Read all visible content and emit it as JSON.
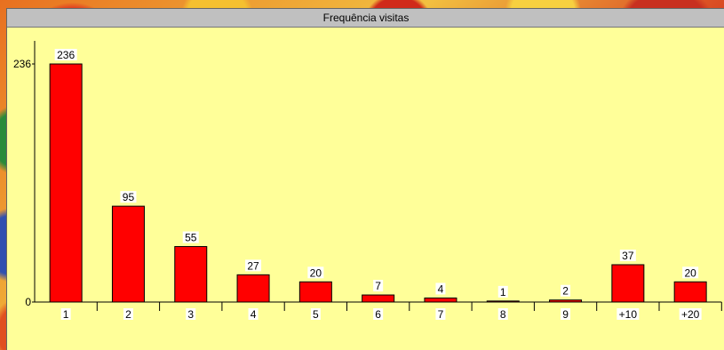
{
  "chart_data": {
    "type": "bar",
    "title": "Frequência visitas",
    "categories": [
      "1",
      "2",
      "3",
      "4",
      "5",
      "6",
      "7",
      "8",
      "9",
      "+10",
      "+20"
    ],
    "values": [
      236,
      95,
      55,
      27,
      20,
      7,
      4,
      1,
      2,
      37,
      20
    ],
    "y_ticks": [
      "0",
      "236"
    ],
    "ylim": [
      0,
      236
    ],
    "xlabel": "",
    "ylabel": "",
    "grid": false,
    "legend": "none"
  },
  "colors": {
    "bar": "#ff0000",
    "panel": "#ffff99",
    "title_bar": "#c0c0c0"
  }
}
